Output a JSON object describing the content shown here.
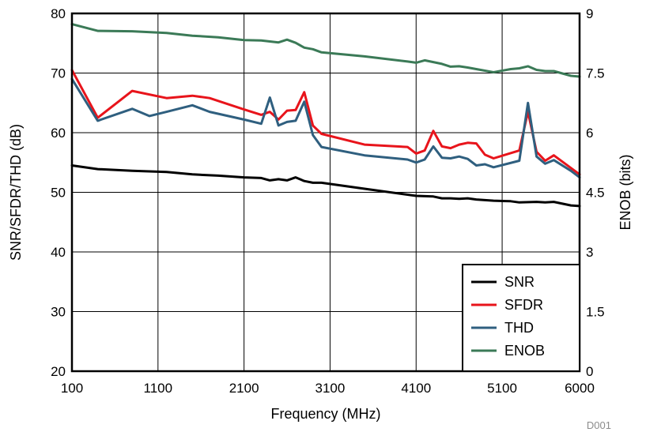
{
  "chart_data": {
    "type": "line",
    "xlabel": "Frequency (MHz)",
    "ylabel": "SNR/SFDR/THD (dB)",
    "y2label": "ENOB (bits)",
    "xlim": [
      100,
      6000
    ],
    "ylim": [
      20,
      80
    ],
    "y2lim": [
      0,
      9
    ],
    "xticks": [
      100,
      1100,
      2100,
      3100,
      4100,
      5100,
      6000
    ],
    "yticks": [
      20,
      30,
      40,
      50,
      60,
      70,
      80
    ],
    "y2ticks": [
      "0",
      "1.5",
      "3",
      "4.5",
      "6",
      "7.5",
      "9"
    ],
    "grid": true,
    "legend_position": "bottom-right",
    "note": "D001",
    "series": [
      {
        "name": "SNR",
        "axis": "left",
        "color": "#000000",
        "x": [
          100,
          400,
          800,
          1200,
          1500,
          1800,
          2100,
          2300,
          2400,
          2500,
          2600,
          2700,
          2800,
          2900,
          3000,
          3500,
          4000,
          4100,
          4300,
          4400,
          4500,
          4600,
          4700,
          4800,
          5000,
          5200,
          5300,
          5500,
          5600,
          5700,
          5900,
          6000
        ],
        "values": [
          54.5,
          53.9,
          53.6,
          53.4,
          53.0,
          52.8,
          52.5,
          52.4,
          52.0,
          52.2,
          52.0,
          52.5,
          51.9,
          51.6,
          51.6,
          50.6,
          49.6,
          49.4,
          49.3,
          49.0,
          49.0,
          48.9,
          49.0,
          48.8,
          48.6,
          48.5,
          48.3,
          48.4,
          48.3,
          48.4,
          47.8,
          47.7
        ]
      },
      {
        "name": "SFDR",
        "axis": "left",
        "color": "#e8141b",
        "x": [
          100,
          400,
          800,
          1200,
          1500,
          1700,
          2100,
          2300,
          2400,
          2500,
          2600,
          2700,
          2800,
          2900,
          3000,
          3500,
          4000,
          4100,
          4200,
          4300,
          4400,
          4500,
          4600,
          4700,
          4800,
          4900,
          5000,
          5300,
          5400,
          5500,
          5600,
          5700,
          6000
        ],
        "values": [
          70.5,
          62.5,
          67.0,
          65.8,
          66.2,
          65.8,
          63.9,
          63.0,
          63.5,
          62.2,
          63.7,
          63.8,
          66.8,
          61.2,
          59.8,
          58.0,
          57.6,
          56.5,
          57.0,
          60.3,
          57.7,
          57.4,
          58.0,
          58.3,
          58.2,
          56.3,
          55.7,
          57.0,
          63.5,
          56.8,
          55.3,
          56.2,
          53.0
        ]
      },
      {
        "name": "THD",
        "axis": "left",
        "color": "#2f5f7f",
        "x": [
          100,
          400,
          800,
          1000,
          1200,
          1500,
          1700,
          2100,
          2300,
          2400,
          2500,
          2600,
          2700,
          2800,
          2900,
          3000,
          3500,
          4000,
          4100,
          4200,
          4300,
          4400,
          4500,
          4600,
          4700,
          4800,
          4900,
          5000,
          5300,
          5400,
          5500,
          5600,
          5700,
          5900,
          6000
        ],
        "values": [
          69.0,
          62.0,
          64.0,
          62.8,
          63.5,
          64.6,
          63.5,
          62.2,
          61.5,
          65.9,
          61.2,
          61.8,
          62.0,
          65.2,
          59.6,
          57.6,
          56.2,
          55.5,
          55.0,
          55.5,
          57.7,
          55.8,
          55.7,
          56.0,
          55.6,
          54.5,
          54.7,
          54.2,
          55.3,
          65.0,
          56.0,
          54.8,
          55.4,
          53.6,
          52.5
        ]
      },
      {
        "name": "ENOB",
        "axis": "right",
        "color": "#3b7a57",
        "x": [
          100,
          400,
          800,
          1200,
          1500,
          1800,
          2100,
          2300,
          2500,
          2600,
          2700,
          2800,
          2900,
          3000,
          3500,
          4000,
          4100,
          4200,
          4400,
          4500,
          4600,
          4700,
          4800,
          5000,
          5200,
          5300,
          5400,
          5500,
          5600,
          5700,
          5900,
          6000
        ],
        "values": [
          8.73,
          8.56,
          8.55,
          8.51,
          8.44,
          8.4,
          8.33,
          8.32,
          8.27,
          8.34,
          8.26,
          8.14,
          8.1,
          8.02,
          7.92,
          7.79,
          7.76,
          7.82,
          7.73,
          7.66,
          7.67,
          7.64,
          7.6,
          7.52,
          7.6,
          7.62,
          7.67,
          7.58,
          7.55,
          7.55,
          7.43,
          7.41
        ]
      }
    ]
  }
}
